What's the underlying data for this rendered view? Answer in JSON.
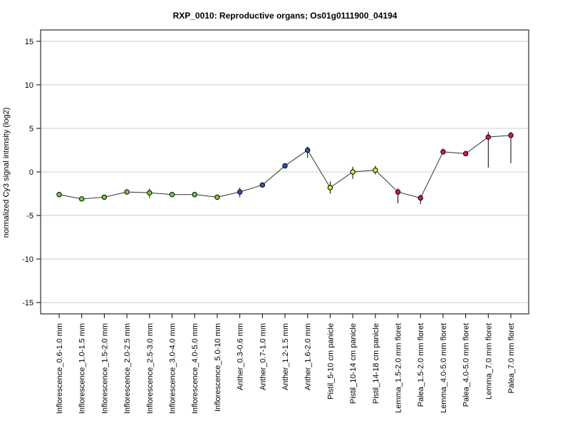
{
  "chart_data": {
    "type": "line",
    "title": "RXP_0010: Reproductive organs; Os01g0111900_04194",
    "xlabel": "",
    "ylabel": "normalized Cy3 signal intensity (log2)",
    "ylim": [
      -16.3,
      16.3
    ],
    "yticks": [
      -15,
      -10,
      -5,
      0,
      5,
      10,
      15
    ],
    "grid": true,
    "categories": [
      "Inflorescence_0.6-1.0 mm",
      "Inflorescence_1.0-1.5 mm",
      "Inflorescence_1.5-2.0 mm",
      "Inflorescence_2.0-2.5 mm",
      "Inflorescence_2.5-3.0 mm",
      "Inflorescence_3.0-4.0 mm",
      "Inflorescence_4.0-5.0 mm",
      "Inflorescence_5.0-10 mm",
      "Anther_0.3-0.6 mm",
      "Anther_0.7-1.0 mm",
      "Anther_1.2-1.5 mm",
      "Anther_1.6-2.0 mm",
      "Pistil_5-10 cm panicle",
      "Pistil_10-14 cm panicle",
      "Pistil_14-18 cm panicle",
      "Lemma_1.5-2.0 mm floret",
      "Palea_1.5-2.0 mm floret",
      "Lemma_4.0-5.0 mm floret",
      "Palea_4.0-5.0 mm floret",
      "Lemma_7.0 mm floret",
      "Palea_7.0 mm floret"
    ],
    "series": [
      {
        "values": [
          -2.6,
          -3.1,
          -2.9,
          -2.3,
          -2.4,
          -2.6,
          -2.6,
          -2.9,
          -2.3,
          -1.5,
          0.7,
          2.5,
          -1.8,
          0.0,
          0.2,
          -2.3,
          -3.0,
          2.3,
          2.1,
          4.0,
          4.2
        ],
        "err_low": [
          -2.8,
          -3.3,
          -3.1,
          -2.5,
          -3.0,
          -2.8,
          -2.9,
          -3.1,
          -2.9,
          -1.7,
          0.4,
          1.6,
          -2.5,
          -0.8,
          -0.3,
          -3.6,
          -3.7,
          2.0,
          1.9,
          0.5,
          1.0
        ],
        "err_high": [
          -2.4,
          -2.9,
          -2.7,
          -2.1,
          -1.9,
          -2.4,
          -2.3,
          -2.7,
          -1.8,
          -1.3,
          1.0,
          2.9,
          -1.1,
          0.6,
          0.7,
          -1.9,
          -2.6,
          2.7,
          2.4,
          4.6,
          4.6
        ]
      }
    ],
    "point_colors": [
      "#7ccd3e",
      "#7ccd3e",
      "#7ccd3e",
      "#7ccd3e",
      "#7ccd3e",
      "#7ccd3e",
      "#7ccd3e",
      "#7ccd3e",
      "#2f54c9",
      "#2f54c9",
      "#2f54c9",
      "#2f54c9",
      "#e6df3c",
      "#e6df3c",
      "#e6df3c",
      "#d6156f",
      "#d6156f",
      "#d6156f",
      "#d6156f",
      "#d6156f",
      "#d6156f"
    ],
    "line_color": "#333333",
    "grid_color": "#cccccc"
  }
}
